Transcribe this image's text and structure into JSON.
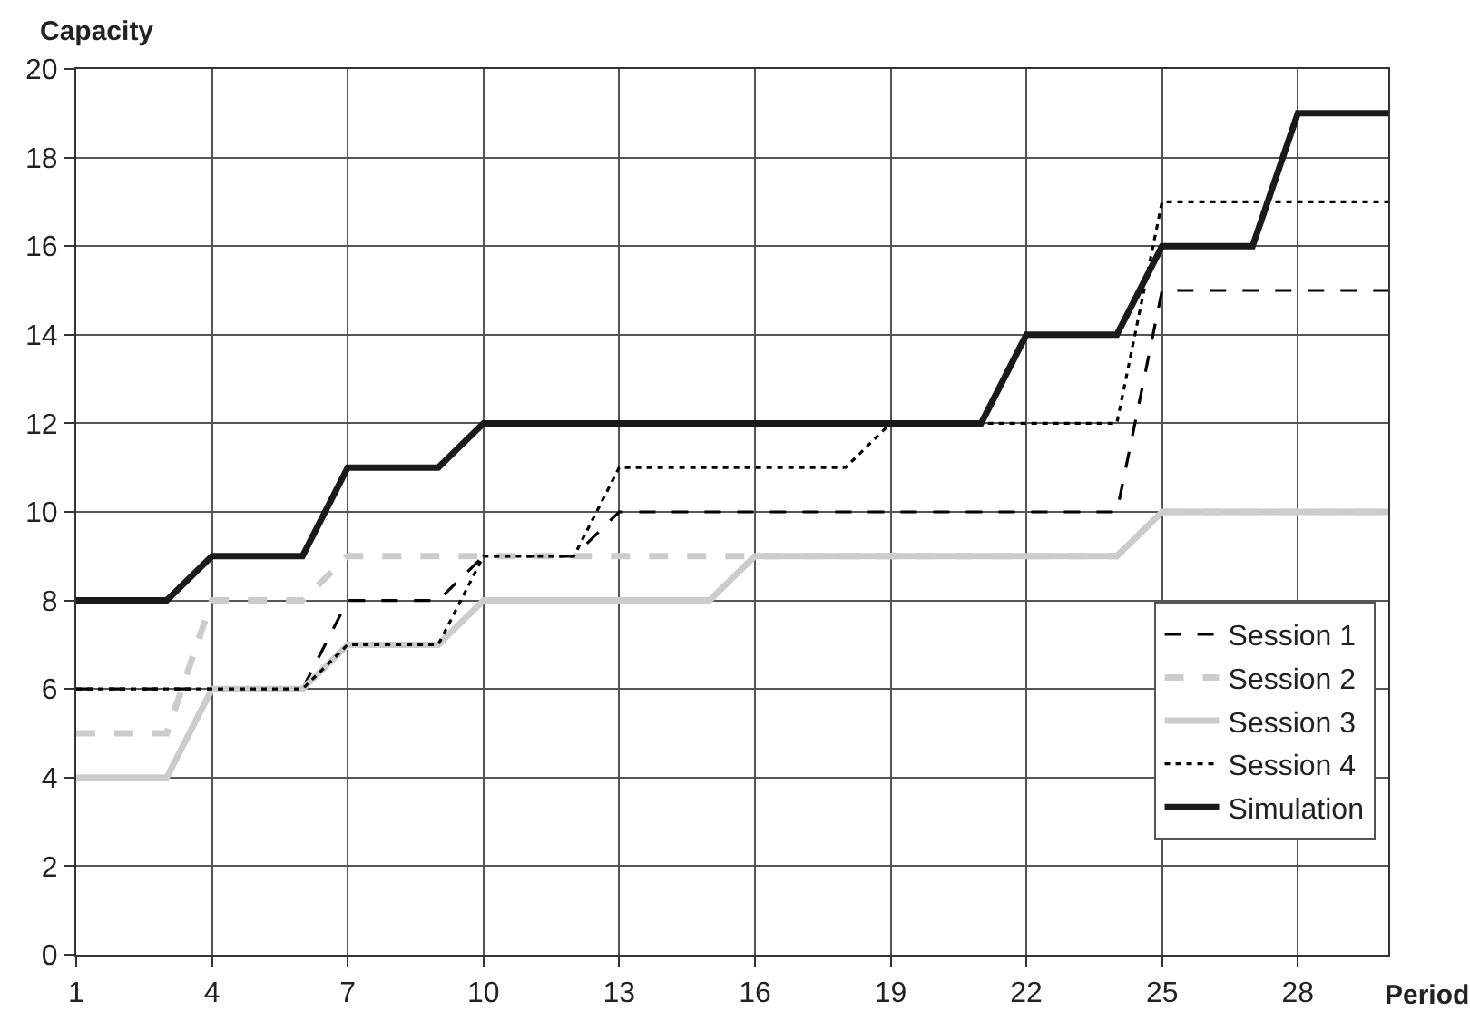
{
  "chart_data": {
    "type": "line",
    "xlabel": "Period",
    "ylabel": "Capacity",
    "x": [
      1,
      2,
      3,
      4,
      5,
      6,
      7,
      8,
      9,
      10,
      11,
      12,
      13,
      14,
      15,
      16,
      17,
      18,
      19,
      20,
      21,
      22,
      23,
      24,
      25,
      26,
      27,
      28,
      29,
      30
    ],
    "series": [
      {
        "name": "Session 1",
        "color": "#000000",
        "line_style": "dashed",
        "values": [
          6,
          6,
          6,
          6,
          6,
          6,
          8,
          8,
          8,
          9,
          9,
          9,
          10,
          10,
          10,
          10,
          10,
          10,
          10,
          10,
          10,
          10,
          10,
          10,
          15,
          15,
          15,
          15,
          15,
          15
        ]
      },
      {
        "name": "Session 2",
        "color": "#cccccc",
        "line_style": "dashed",
        "values": [
          5,
          5,
          5,
          8,
          8,
          8,
          9,
          9,
          9,
          9,
          9,
          9,
          9,
          9,
          9,
          9,
          9,
          9,
          9,
          9,
          9,
          9,
          9,
          9,
          10,
          10,
          10,
          10,
          10,
          10
        ]
      },
      {
        "name": "Session 3",
        "color": "#cccccc",
        "line_style": "solid",
        "values": [
          4,
          4,
          4,
          6,
          6,
          6,
          7,
          7,
          7,
          8,
          8,
          8,
          8,
          8,
          8,
          9,
          9,
          9,
          9,
          9,
          9,
          9,
          9,
          9,
          10,
          10,
          10,
          10,
          10,
          10
        ]
      },
      {
        "name": "Session 4",
        "color": "#000000",
        "line_style": "dotted",
        "values": [
          6,
          6,
          6,
          6,
          6,
          6,
          7,
          7,
          7,
          9,
          9,
          9,
          11,
          11,
          11,
          11,
          11,
          11,
          12,
          12,
          12,
          12,
          12,
          12,
          17,
          17,
          17,
          17,
          17,
          17
        ]
      },
      {
        "name": "Simulation",
        "color": "#1a1a1a",
        "line_style": "solid",
        "values": [
          8,
          8,
          8,
          9,
          9,
          9,
          11,
          11,
          11,
          12,
          12,
          12,
          12,
          12,
          12,
          12,
          12,
          12,
          12,
          12,
          12,
          14,
          14,
          14,
          16,
          16,
          16,
          19,
          19,
          19
        ]
      }
    ],
    "xlim": [
      1,
      30
    ],
    "xticks": [
      1,
      4,
      7,
      10,
      13,
      16,
      19,
      22,
      25,
      28
    ],
    "ylim": [
      0,
      20
    ],
    "yticks": [
      0,
      2,
      4,
      6,
      8,
      10,
      12,
      14,
      16,
      18,
      20
    ],
    "grid": true,
    "legend": "bottom right",
    "marker": "none"
  }
}
